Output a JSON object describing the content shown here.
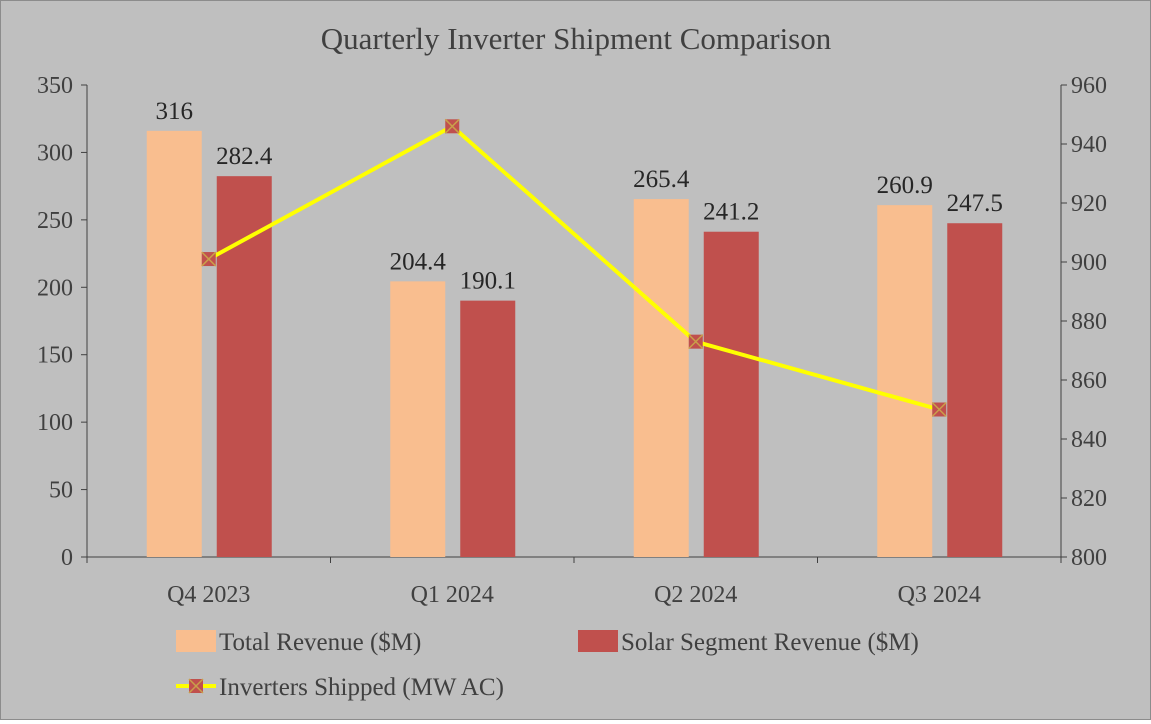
{
  "chart_data": {
    "type": "bar+line",
    "title": "Quarterly Inverter Shipment Comparison",
    "categories": [
      "Q4 2023",
      "Q1 2024",
      "Q2 2024",
      "Q3 2024"
    ],
    "series": [
      {
        "name": "Total Revenue ($M)",
        "type": "bar",
        "axis": "left",
        "color": "#f9be8f",
        "values": [
          316,
          204.4,
          265.4,
          260.9
        ],
        "labels": [
          "316",
          "204.4",
          "265.4",
          "260.9"
        ]
      },
      {
        "name": "Solar Segment Revenue ($M)",
        "type": "bar",
        "axis": "left",
        "color": "#c0504d",
        "values": [
          282.4,
          190.1,
          241.2,
          247.5
        ],
        "labels": [
          "282.4",
          "190.1",
          "241.2",
          "247.5"
        ]
      },
      {
        "name": "Inverters Shipped (MW AC)",
        "type": "line",
        "axis": "right",
        "color": "#ffff00",
        "marker_color": "#c0504d",
        "values": [
          901,
          946,
          873,
          850
        ]
      }
    ],
    "y_left": {
      "min": 0,
      "max": 350,
      "ticks": [
        "0",
        "50",
        "100",
        "150",
        "200",
        "250",
        "300",
        "350"
      ]
    },
    "y_right": {
      "min": 800,
      "max": 960,
      "ticks": [
        "800",
        "820",
        "840",
        "860",
        "880",
        "900",
        "920",
        "940",
        "960"
      ]
    },
    "grid": false,
    "legend": "bottom"
  }
}
